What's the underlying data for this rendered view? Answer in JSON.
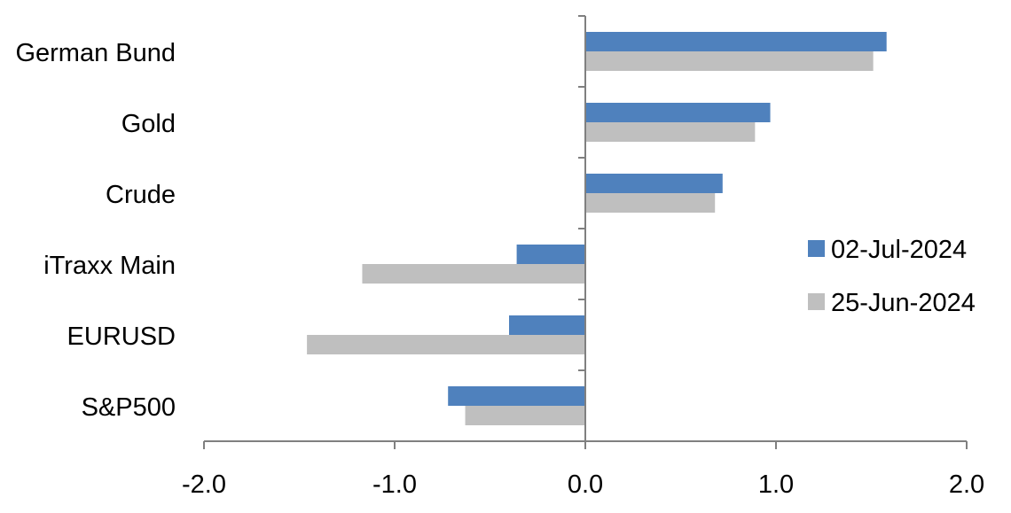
{
  "chart_data": {
    "type": "bar",
    "orientation": "horizontal",
    "categories": [
      "German Bund",
      "Gold",
      "Crude",
      "iTraxx Main",
      "EURUSD",
      "S&P500"
    ],
    "series": [
      {
        "name": "02-Jul-2024",
        "color": "#4F81BD",
        "values": [
          1.58,
          0.97,
          0.72,
          -0.36,
          -0.4,
          -0.72
        ]
      },
      {
        "name": "25-Jun-2024",
        "color": "#BFBFBF",
        "values": [
          1.51,
          0.89,
          0.68,
          -1.17,
          -1.46,
          -0.63
        ]
      }
    ],
    "xlim": [
      -2.0,
      2.0
    ],
    "xticks": [
      "-2.0",
      "-1.0",
      "0.0",
      "1.0",
      "2.0"
    ],
    "xtick_values": [
      -2,
      -1,
      0,
      1,
      2
    ],
    "grid": false,
    "legend_position": "right"
  }
}
